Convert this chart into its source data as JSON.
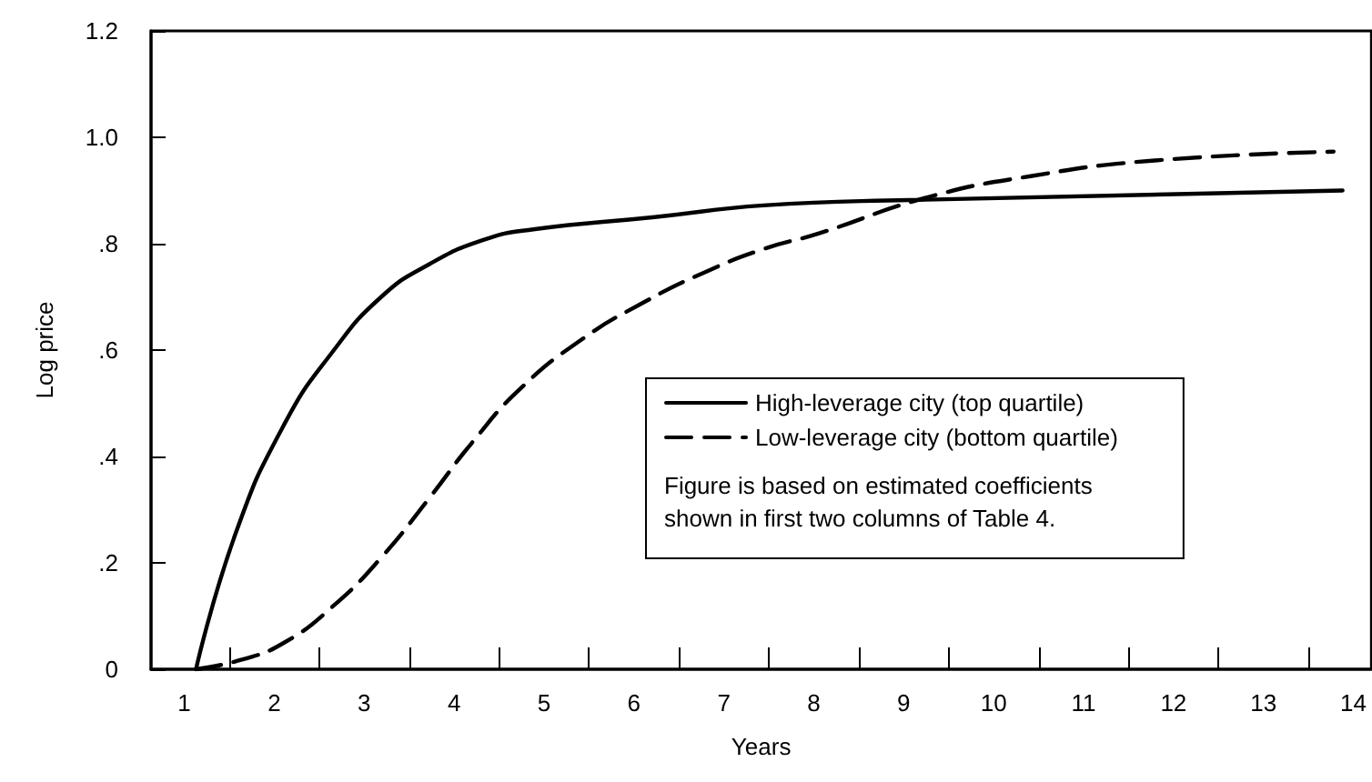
{
  "chart_data": {
    "type": "line",
    "xlabel": "Years",
    "ylabel": "Log price",
    "xlim": [
      0.63,
      14.2
    ],
    "ylim": [
      0,
      1.2
    ],
    "xticks": [
      {
        "value": 1,
        "label": "1"
      },
      {
        "value": 1.5,
        "label": null
      },
      {
        "value": 2,
        "label": "2"
      },
      {
        "value": 2.5,
        "label": null
      },
      {
        "value": 3,
        "label": "3"
      },
      {
        "value": 3.5,
        "label": null
      },
      {
        "value": 4,
        "label": "4"
      },
      {
        "value": 4.5,
        "label": null
      },
      {
        "value": 5,
        "label": "5"
      },
      {
        "value": 5.5,
        "label": null
      },
      {
        "value": 6,
        "label": "6"
      },
      {
        "value": 6.5,
        "label": null
      },
      {
        "value": 7,
        "label": "7"
      },
      {
        "value": 7.5,
        "label": null
      },
      {
        "value": 8,
        "label": "8"
      },
      {
        "value": 8.5,
        "label": null
      },
      {
        "value": 9,
        "label": "9"
      },
      {
        "value": 9.5,
        "label": null
      },
      {
        "value": 10,
        "label": "10"
      },
      {
        "value": 10.5,
        "label": null
      },
      {
        "value": 11,
        "label": "11"
      },
      {
        "value": 11.5,
        "label": null
      },
      {
        "value": 12,
        "label": "12"
      },
      {
        "value": 12.5,
        "label": null
      },
      {
        "value": 13,
        "label": "13"
      },
      {
        "value": 13.5,
        "label": null
      },
      {
        "value": 14,
        "label": "14"
      }
    ],
    "yticks": [
      {
        "value": 0,
        "label": "0"
      },
      {
        "value": 0.2,
        "label": ".2"
      },
      {
        "value": 0.4,
        "label": ".4"
      },
      {
        "value": 0.6,
        "label": ".6"
      },
      {
        "value": 0.8,
        "label": ".8"
      },
      {
        "value": 1,
        "label": "1.0"
      },
      {
        "value": 1.2,
        "label": "1.2"
      }
    ],
    "grid": false,
    "legend": "bottom right",
    "marker": "none",
    "annotations": [
      "Figure is based on estimated coefficients\nshown in first two columns of Table 4."
    ],
    "series": [
      {
        "name": "High-leverage city (top quartile)",
        "color": "#000000",
        "line_style": "solid",
        "x": [
          1.13,
          1.57,
          2.11,
          2.65,
          3.19,
          3.73,
          4.34,
          4.88,
          6.23,
          7.44,
          9.06,
          13.88
        ],
        "values": [
          0,
          0.255,
          0.46,
          0.597,
          0.7,
          0.762,
          0.808,
          0.827,
          0.85,
          0.872,
          0.882,
          0.9
        ]
      },
      {
        "name": "Low-leverage city (bottom quartile)",
        "color": "#000000",
        "line_style": "dashed",
        "x": [
          1.13,
          1.64,
          2.11,
          2.65,
          3.19,
          3.73,
          4.2,
          4.74,
          5.42,
          6.09,
          6.77,
          7.44,
          8.05,
          9.26,
          10.41,
          11.76,
          13.78
        ],
        "values": [
          0,
          0.018,
          0.05,
          0.118,
          0.21,
          0.323,
          0.426,
          0.528,
          0.62,
          0.688,
          0.745,
          0.79,
          0.819,
          0.887,
          0.927,
          0.956,
          0.973
        ]
      }
    ]
  }
}
